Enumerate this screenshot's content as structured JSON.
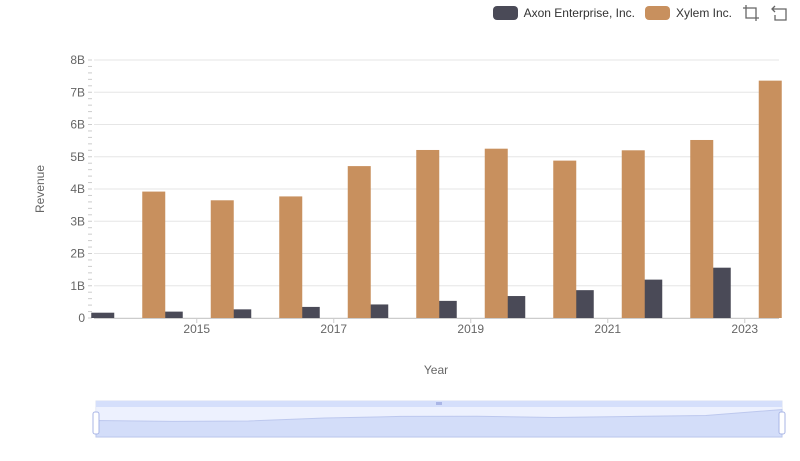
{
  "legend": {
    "items": [
      {
        "label": "Axon Enterprise, Inc.",
        "color": "#4a4a57"
      },
      {
        "label": "Xylem Inc.",
        "color": "#c8905e"
      }
    ],
    "tools": [
      "zoom-icon",
      "restore-icon"
    ]
  },
  "chart_data": {
    "type": "bar",
    "categories": [
      "2014",
      "2015",
      "2016",
      "2017",
      "2018",
      "2019",
      "2020",
      "2021",
      "2022",
      "2023"
    ],
    "x_tick_labels": [
      "2015",
      "2017",
      "2019",
      "2021",
      "2023"
    ],
    "xlabel": "Year",
    "ylabel": "Revenue",
    "ylim": [
      0,
      8000000000
    ],
    "y_tick_labels": [
      "0",
      "1B",
      "2B",
      "3B",
      "4B",
      "5B",
      "6B",
      "7B",
      "8B"
    ],
    "grid": true,
    "legend_position": "top-right",
    "series": [
      {
        "name": "Axon Enterprise, Inc.",
        "color": "#4a4a57",
        "values": [
          164500000,
          197900000,
          268200000,
          343800000,
          420100000,
          530900000,
          681000000,
          863400000,
          1190000000,
          1560000000
        ]
      },
      {
        "name": "Xylem Inc.",
        "color": "#c8905e",
        "values": [
          3920000000,
          3650000000,
          3770000000,
          4710000000,
          5210000000,
          5250000000,
          4880000000,
          5200000000,
          5520000000,
          7360000000
        ]
      }
    ],
    "datazoom": {
      "start": 0,
      "end": 100,
      "handle_color": "#aab6e6",
      "fill_color": "#d5dffb"
    }
  }
}
